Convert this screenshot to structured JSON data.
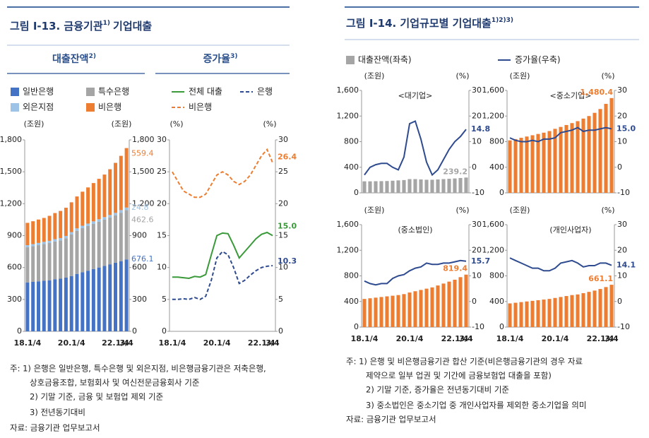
{
  "figures": [
    {
      "title_parts": [
        "그림 Ⅰ-13. 금융기관",
        "1)",
        "기업대출"
      ],
      "notes": [
        "주: 1) 은행은 일반은행, 특수은행 및 외은지점, 비은행금융기관은 저축은행,",
        "상호금융조합, 보험회사 및 여신전문금융회사 기준",
        "2) 기말 기준, 금융 및 보험업 제외 기준",
        "3) 전년동기대비",
        "자료: 금융기관 업무보고서"
      ]
    },
    {
      "title_parts": [
        "그림 Ⅰ-14. 기업규모별 기업대출",
        "1)2)3)"
      ],
      "notes": [
        "주: 1) 은행 및 비은행금융기관 합산 기준(비은행금융기관의 경우 자료",
        "제약으로 일부 업권 및 기간에 금융보험업 대출을 포함)",
        "2) 기말 기준, 증가율은 전년동기대비 기준",
        "3) 중소법인은 중소기업 중 개인사업자를 제외한 중소기업을 의미",
        "자료: 금융기관 업무보고서"
      ]
    }
  ],
  "chart_data": [
    {
      "type": "bar",
      "stacked": true,
      "title": "대출잔액",
      "title_note": "2)",
      "ylabel": "(조원)",
      "y2label": "(조원)",
      "categories": [
        "18.1/4",
        null,
        null,
        null,
        null,
        null,
        null,
        null,
        "20.1/4",
        null,
        null,
        null,
        null,
        null,
        null,
        null,
        "22.1/4",
        null,
        "3/4"
      ],
      "ylim": [
        0,
        1800
      ],
      "yticks": [
        0,
        300,
        600,
        900,
        {
          "value": 1200,
          "label": "1,200"
        },
        {
          "value": 1500,
          "label": "1,500"
        },
        {
          "value": 1800,
          "label": "1,800"
        }
      ],
      "y2lim": [
        0,
        1800
      ],
      "y2ticks": [
        0,
        300,
        600,
        900,
        {
          "value": 1200,
          "label": "1,200"
        },
        {
          "value": 1500,
          "label": "1,500"
        },
        {
          "value": 1800,
          "label": "1,800"
        }
      ],
      "series": [
        {
          "name": "일반은행",
          "color": "#4472c4",
          "values": [
            460,
            465,
            470,
            475,
            480,
            490,
            495,
            505,
            520,
            540,
            555,
            570,
            585,
            600,
            615,
            630,
            645,
            660,
            676.1
          ],
          "value_labels": [
            null,
            null,
            null,
            null,
            null,
            null,
            null,
            null,
            null,
            null,
            null,
            null,
            null,
            null,
            null,
            null,
            null,
            null,
            "676.1"
          ]
        },
        {
          "name": "특수은행",
          "color": "#a5a5a5",
          "values": [
            330,
            335,
            340,
            345,
            350,
            355,
            360,
            370,
            390,
            405,
            415,
            420,
            425,
            430,
            435,
            440,
            445,
            455,
            462.6
          ],
          "value_labels": [
            null,
            null,
            null,
            null,
            null,
            null,
            null,
            null,
            null,
            null,
            null,
            null,
            null,
            null,
            null,
            null,
            null,
            null,
            "462.6"
          ]
        },
        {
          "name": "외은지점",
          "color": "#9dc3e6",
          "values": [
            20,
            20,
            21,
            21,
            21,
            22,
            22,
            22,
            23,
            23,
            23,
            23,
            24,
            24,
            24,
            24,
            24,
            25,
            24.8
          ],
          "value_labels": [
            null,
            null,
            null,
            null,
            null,
            null,
            null,
            null,
            null,
            null,
            null,
            null,
            null,
            null,
            null,
            null,
            null,
            null,
            "24.8"
          ]
        },
        {
          "name": "비은행",
          "color": "#ed7d31",
          "values": [
            210,
            215,
            220,
            225,
            235,
            245,
            255,
            265,
            280,
            300,
            320,
            340,
            360,
            380,
            400,
            430,
            470,
            510,
            559.4
          ],
          "value_labels": [
            null,
            null,
            null,
            null,
            null,
            null,
            null,
            null,
            null,
            null,
            null,
            null,
            null,
            null,
            null,
            null,
            null,
            null,
            "559.4"
          ]
        }
      ]
    },
    {
      "type": "line",
      "title": "증가율",
      "title_note": "3)",
      "ylabel": "(%)",
      "y2label": "(%)",
      "categories": [
        "18.1/4",
        null,
        null,
        null,
        null,
        null,
        null,
        null,
        "20.1/4",
        null,
        null,
        null,
        null,
        null,
        null,
        null,
        "22.1/4",
        null,
        "3/4"
      ],
      "ylim": [
        0,
        30
      ],
      "yticks": [
        0,
        5,
        10,
        15,
        20,
        25,
        30
      ],
      "y2lim": [
        0,
        30
      ],
      "y2ticks": [
        0,
        5,
        10,
        15,
        20,
        25,
        30
      ],
      "series": [
        {
          "name": "전체 대출",
          "color": "#3a9a3a",
          "values": [
            8.5,
            8.5,
            8.4,
            8.3,
            8.6,
            8.5,
            8.9,
            12,
            15,
            15.4,
            15.3,
            13.5,
            11.5,
            12.5,
            13.5,
            14.5,
            15.2,
            15.5,
            15
          ],
          "value_labels": [
            null,
            null,
            null,
            null,
            null,
            null,
            null,
            null,
            null,
            null,
            null,
            null,
            null,
            null,
            null,
            null,
            null,
            null,
            "15.0"
          ]
        },
        {
          "name": "은행",
          "color": "#2f4b8f",
          "dash": true,
          "values": [
            5,
            5,
            5.1,
            5,
            5.3,
            5,
            5.5,
            8,
            11.5,
            12.5,
            12,
            10,
            7.5,
            8,
            8.8,
            9.5,
            10,
            10.2,
            10.3
          ],
          "value_labels": [
            null,
            null,
            null,
            null,
            null,
            null,
            null,
            null,
            null,
            null,
            null,
            null,
            null,
            null,
            null,
            null,
            null,
            null,
            "10.3"
          ]
        },
        {
          "name": "비은행",
          "color": "#ed7d31",
          "dash": true,
          "values": [
            25,
            23.5,
            22,
            21.5,
            21,
            21,
            21.5,
            23,
            24.5,
            25,
            24.5,
            23.5,
            23,
            23.5,
            24.5,
            26,
            27.5,
            28.5,
            26.4
          ],
          "value_labels": [
            null,
            null,
            null,
            null,
            null,
            null,
            null,
            null,
            null,
            null,
            null,
            null,
            null,
            null,
            null,
            null,
            null,
            null,
            "26.4"
          ]
        }
      ]
    },
    {
      "type": "combo",
      "title": "<대기업>",
      "ylabel": "(조원)",
      "y2label": "(%)",
      "categories": [
        null,
        null,
        null,
        null,
        null,
        null,
        null,
        null,
        null,
        null,
        null,
        null,
        null,
        null,
        null,
        null,
        null,
        null,
        null
      ],
      "ylim": [
        0,
        1600
      ],
      "yticks": [
        0,
        400,
        800,
        {
          "value": 1200,
          "label": "1,200"
        },
        {
          "value": 1600,
          "label": "1,600"
        }
      ],
      "y2lim": [
        -10,
        30
      ],
      "y2ticks": [
        -10,
        0,
        10,
        20,
        30
      ],
      "series": [
        {
          "name": "대출잔액(좌축)",
          "type": "bar",
          "color": "#a5a5a5",
          "values": [
            180,
            180,
            182,
            183,
            185,
            190,
            195,
            200,
            215,
            215,
            210,
            205,
            205,
            210,
            215,
            220,
            225,
            232,
            239.2
          ],
          "value_labels": [
            null,
            null,
            null,
            null,
            null,
            null,
            null,
            null,
            null,
            null,
            null,
            null,
            null,
            null,
            null,
            null,
            null,
            null,
            "239.2"
          ]
        },
        {
          "name": "증가율(우축)",
          "type": "line",
          "axis": "y2",
          "color": "#2f4b8f",
          "values": [
            -3,
            0,
            1,
            1.5,
            1.5,
            0,
            -1,
            4,
            17,
            18,
            11,
            2,
            -3,
            -1,
            3,
            7,
            10,
            12,
            14.8
          ],
          "value_labels": [
            null,
            null,
            null,
            null,
            null,
            null,
            null,
            null,
            null,
            null,
            null,
            null,
            null,
            null,
            null,
            null,
            null,
            null,
            "14.8"
          ]
        }
      ]
    },
    {
      "type": "combo",
      "title": "<중소기업>",
      "ylabel": "(조원)",
      "y2label": "(%)",
      "categories": [
        null,
        null,
        null,
        null,
        null,
        null,
        null,
        null,
        null,
        null,
        null,
        null,
        null,
        null,
        null,
        null,
        null,
        null,
        null
      ],
      "ylim": [
        0,
        1600
      ],
      "yticks": [
        0,
        400,
        800,
        {
          "value": 1200,
          "label": "1,200"
        },
        {
          "value": 1600,
          "label": "1,600"
        }
      ],
      "y2lim": [
        -10,
        30
      ],
      "y2ticks": [
        -10,
        0,
        10,
        20,
        30
      ],
      "series": [
        {
          "type": "bar",
          "color": "#ed7d31",
          "values": [
            820,
            840,
            860,
            880,
            900,
            920,
            940,
            965,
            1000,
            1030,
            1060,
            1090,
            1120,
            1160,
            1200,
            1250,
            1310,
            1390,
            1480.4
          ],
          "value_labels": [
            null,
            null,
            null,
            null,
            null,
            null,
            null,
            null,
            null,
            null,
            null,
            null,
            null,
            null,
            null,
            null,
            null,
            null,
            "1,480.4"
          ]
        },
        {
          "type": "line",
          "axis": "y2",
          "color": "#2f4b8f",
          "values": [
            11.5,
            10.5,
            10,
            10,
            10.5,
            10,
            11,
            11,
            11.5,
            13.5,
            14,
            14.5,
            15.5,
            14,
            14.5,
            14.5,
            15,
            15.5,
            15
          ],
          "value_labels": [
            null,
            null,
            null,
            null,
            null,
            null,
            null,
            null,
            null,
            null,
            null,
            null,
            null,
            null,
            null,
            null,
            null,
            null,
            "15.0"
          ]
        }
      ]
    },
    {
      "type": "combo",
      "title": "(중소법인)",
      "ylabel": "(조원)",
      "y2label": "(%)",
      "categories": [
        "18.1/4",
        null,
        null,
        null,
        null,
        null,
        null,
        null,
        "20.1/4",
        null,
        null,
        null,
        null,
        null,
        null,
        null,
        "22.1/4",
        null,
        "3/4"
      ],
      "ylim": [
        0,
        1600
      ],
      "yticks": [
        0,
        400,
        800,
        {
          "value": 1200,
          "label": "1,200"
        },
        {
          "value": 1600,
          "label": "1,600"
        }
      ],
      "y2lim": [
        -10,
        30
      ],
      "y2ticks": [
        -10,
        0,
        10,
        20,
        30
      ],
      "series": [
        {
          "type": "bar",
          "color": "#ed7d31",
          "values": [
            440,
            450,
            460,
            470,
            480,
            490,
            500,
            515,
            540,
            560,
            580,
            600,
            620,
            650,
            680,
            710,
            740,
            780,
            819.4
          ],
          "value_labels": [
            null,
            null,
            null,
            null,
            null,
            null,
            null,
            null,
            null,
            null,
            null,
            null,
            null,
            null,
            null,
            null,
            null,
            null,
            "819.4"
          ]
        },
        {
          "type": "line",
          "axis": "y2",
          "color": "#2f4b8f",
          "values": [
            8,
            7,
            6.5,
            7,
            7,
            9,
            10,
            10.5,
            12,
            13,
            13.5,
            15,
            14.5,
            14.5,
            15,
            15,
            15.5,
            16,
            15.7
          ],
          "value_labels": [
            null,
            null,
            null,
            null,
            null,
            null,
            null,
            null,
            null,
            null,
            null,
            null,
            null,
            null,
            null,
            null,
            null,
            null,
            "15.7"
          ]
        }
      ]
    },
    {
      "type": "combo",
      "title": "(개인사업자)",
      "ylabel": "(조원)",
      "y2label": "(%)",
      "categories": [
        "18.1/4",
        null,
        null,
        null,
        null,
        null,
        null,
        null,
        "20.1/4",
        null,
        null,
        null,
        null,
        null,
        null,
        null,
        "22.1/4",
        null,
        "3/4"
      ],
      "ylim": [
        0,
        1600
      ],
      "yticks": [
        0,
        400,
        800,
        {
          "value": 1200,
          "label": "1,200"
        },
        {
          "value": 1600,
          "label": "1,600"
        }
      ],
      "y2lim": [
        -10,
        30
      ],
      "y2ticks": [
        -10,
        0,
        10,
        20,
        30
      ],
      "series": [
        {
          "type": "bar",
          "color": "#ed7d31",
          "values": [
            370,
            380,
            390,
            400,
            410,
            420,
            430,
            440,
            455,
            470,
            485,
            500,
            510,
            530,
            550,
            570,
            595,
            625,
            661.1
          ],
          "value_labels": [
            null,
            null,
            null,
            null,
            null,
            null,
            null,
            null,
            null,
            null,
            null,
            null,
            null,
            null,
            null,
            null,
            null,
            null,
            "661.1"
          ]
        },
        {
          "type": "line",
          "axis": "y2",
          "color": "#2f4b8f",
          "values": [
            17,
            16,
            15,
            14,
            13,
            13,
            12,
            12,
            13,
            15,
            15.5,
            16,
            15,
            13.5,
            14,
            14,
            15,
            15,
            14.1
          ],
          "value_labels": [
            null,
            null,
            null,
            null,
            null,
            null,
            null,
            null,
            null,
            null,
            null,
            null,
            null,
            null,
            null,
            null,
            null,
            null,
            "14.1"
          ]
        }
      ]
    }
  ]
}
